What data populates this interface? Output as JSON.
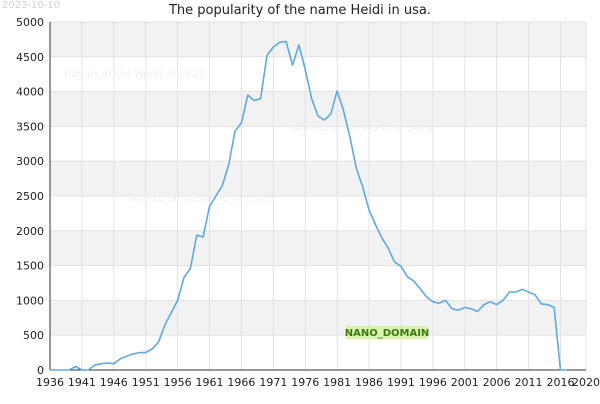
{
  "date_stamp": "2023-10-10",
  "watermarks": [
    "Names of the World © 2023",
    "Names of the World © 2023",
    "Names of the World © 2023"
  ],
  "nano_label": "NANO_DOMAIN",
  "colors": {
    "line": "#5fa8e8",
    "band": "#f2f2f2",
    "grid": "#e2e2e2",
    "axis": "#333333",
    "nano_fill": "#d8f2b0",
    "nano_text": "#3c7a10",
    "watermark": "#efefef"
  },
  "chart_data": {
    "type": "line",
    "title": "The popularity of the name Heidi in usa.",
    "xlabel": "",
    "ylabel": "",
    "xlim": [
      1936,
      2020
    ],
    "ylim": [
      0,
      5000
    ],
    "grid": true,
    "x_ticks": [
      1936,
      1941,
      1946,
      1951,
      1956,
      1961,
      1966,
      1971,
      1976,
      1981,
      1986,
      1991,
      1996,
      2001,
      2006,
      2011,
      2016,
      2020
    ],
    "y_ticks": [
      0,
      500,
      1000,
      1500,
      2000,
      2500,
      3000,
      3500,
      4000,
      4500,
      5000
    ],
    "series": [
      {
        "x": [
          1936,
          1937,
          1938,
          1939,
          1940,
          1941,
          1942,
          1943,
          1944,
          1945,
          1946,
          1947,
          1948,
          1949,
          1950,
          1951,
          1952,
          1953,
          1954,
          1955,
          1956,
          1957,
          1958,
          1959,
          1960,
          1961,
          1962,
          1963,
          1964,
          1965,
          1966,
          1967,
          1968,
          1969,
          1970,
          1971,
          1972,
          1973,
          1974,
          1975,
          1976,
          1977,
          1978,
          1979,
          1980,
          1981,
          1982,
          1983,
          1984,
          1985,
          1986,
          1987,
          1988,
          1989,
          1990,
          1991,
          1992,
          1993,
          1994,
          1995,
          1996,
          1997,
          1998,
          1999,
          2000,
          2001,
          2002,
          2003,
          2004,
          2005,
          2006,
          2007,
          2008,
          2009,
          2010,
          2011,
          2012,
          2013,
          2014,
          2015,
          2016,
          2017
        ],
        "y": [
          0,
          0,
          0,
          0,
          50,
          0,
          0,
          70,
          90,
          100,
          90,
          160,
          200,
          230,
          250,
          250,
          300,
          400,
          650,
          820,
          1000,
          1330,
          1460,
          1940,
          1910,
          2350,
          2500,
          2650,
          2950,
          3430,
          3550,
          3950,
          3870,
          3900,
          4520,
          4640,
          4710,
          4720,
          4380,
          4670,
          4320,
          3900,
          3650,
          3590,
          3680,
          4010,
          3730,
          3350,
          2900,
          2630,
          2300,
          2090,
          1900,
          1750,
          1550,
          1490,
          1340,
          1280,
          1170,
          1050,
          980,
          960,
          1000,
          880,
          860,
          900,
          880,
          840,
          940,
          980,
          940,
          1000,
          1120,
          1120,
          1160,
          1120,
          1080,
          950,
          940,
          900,
          0,
          0
        ]
      }
    ]
  }
}
